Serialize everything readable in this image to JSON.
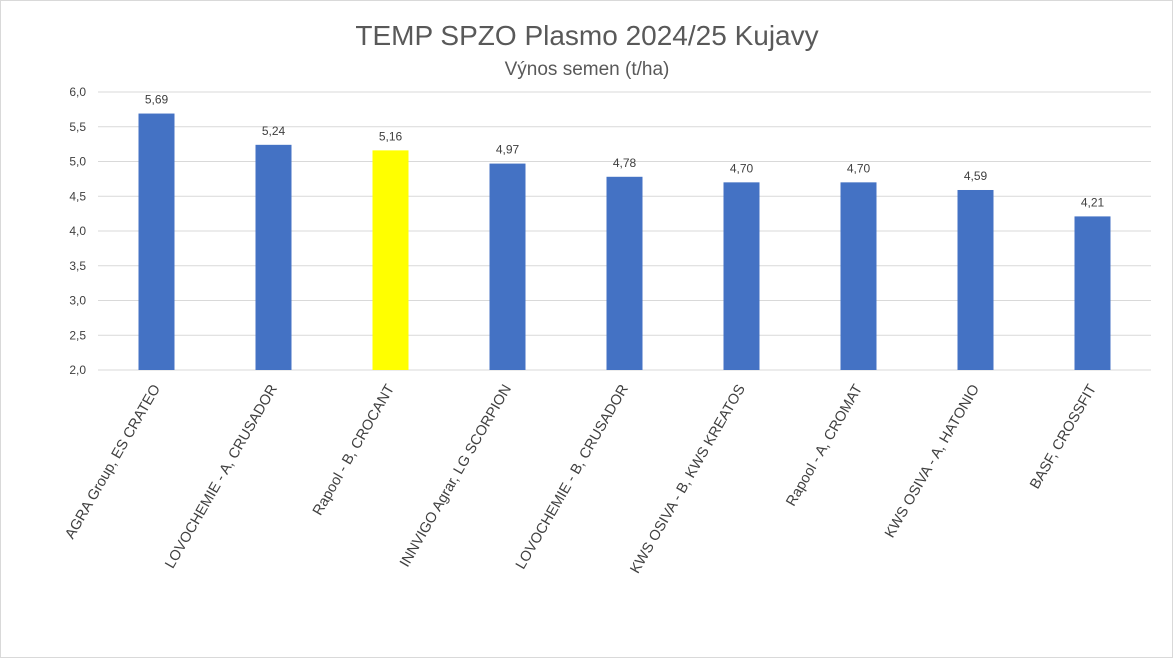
{
  "chart_data": {
    "type": "bar",
    "title": "TEMP SPZO Plasmo 2024/25 Kujavy",
    "subtitle": "Výnos semen (t/ha)",
    "categories": [
      "AGRA Group, ES CRATEO",
      "LOVOCHEMIE - A, CRUSADOR",
      "Rapool - B, CROCANT",
      "INNVIGO Agrar, LG SCORPION",
      "LOVOCHEMIE - B, CRUSADOR",
      "KWS OSIVA - B, KWS KREATOS",
      "Rapool - A, CROMAT",
      "KWS OSIVA - A, HATONIO",
      "BASF, CROSSFIT"
    ],
    "values": [
      5.69,
      5.24,
      5.16,
      4.97,
      4.78,
      4.7,
      4.7,
      4.59,
      4.21
    ],
    "data_labels": [
      "5,69",
      "5,24",
      "5,16",
      "4,97",
      "4,78",
      "4,70",
      "4,70",
      "4,59",
      "4,21"
    ],
    "bar_colors": [
      "#4472c4",
      "#4472c4",
      "#ffff00",
      "#4472c4",
      "#4472c4",
      "#4472c4",
      "#4472c4",
      "#4472c4",
      "#4472c4"
    ],
    "highlight_color": "#ffff00",
    "default_color": "#4472c4",
    "ylim": [
      2.0,
      6.0
    ],
    "y_ticks": [
      2.0,
      2.5,
      3.0,
      3.5,
      4.0,
      4.5,
      5.0,
      5.5,
      6.0
    ],
    "y_tick_labels": [
      "2,0",
      "2,5",
      "3,0",
      "3,5",
      "4,0",
      "4,5",
      "5,0",
      "5,5",
      "6,0"
    ],
    "grid": true,
    "legend": "none",
    "xlabel": "",
    "ylabel": ""
  }
}
